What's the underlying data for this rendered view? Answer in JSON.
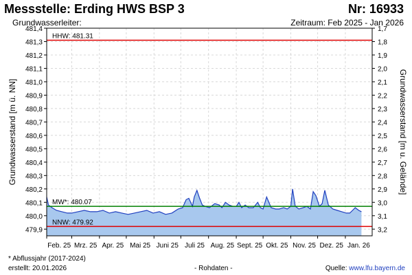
{
  "header": {
    "title": "Messstelle: Erding HWS BSP 3",
    "number": "Nr: 16933",
    "aquifer_label": "Grundwasserleiter:",
    "period": "Zeitraum: Feb 2025 - Jan 2026"
  },
  "footer": {
    "footnote": "* Abflussjahr (2017-2024)",
    "created": "erstellt:  20.01.2026",
    "raw_data": "- Rohdaten -",
    "source_label": "Quelle: ",
    "source_url": "www.lfu.bayern.de"
  },
  "colors": {
    "fill": "#a8c8ee",
    "line": "#1f3fbf",
    "hhw": "#e00000",
    "nnw": "#e00000",
    "mw": "#008000",
    "grid": "#d8d8d8"
  },
  "chart_data": {
    "type": "area",
    "ylabel": "Grundwasserstand [m ü. NN]",
    "ylabel_right": "Grundwasserstand [m u. Gelände]",
    "ylim": [
      479.85,
      481.4
    ],
    "y_ticks": [
      "479,9",
      "480,0",
      "480,1",
      "480,2",
      "480,3",
      "480,4",
      "480,5",
      "480,6",
      "480,7",
      "480,8",
      "480,9",
      "481,0",
      "481,1",
      "481,2",
      "481,3",
      "481,4"
    ],
    "y_right_ticks": [
      "1,7",
      "1,8",
      "1,9",
      "2,0",
      "2,1",
      "2,2",
      "2,3",
      "2,4",
      "2,5",
      "2,6",
      "2,7",
      "2,8",
      "2,9",
      "3,0",
      "3,1",
      "3,2"
    ],
    "x_ticks": [
      "Feb. 25",
      "Mrz. 25",
      "Apr. 25",
      "Mai 25",
      "Juni 25",
      "Juli 25",
      "Aug. 25",
      "Sept. 25",
      "Okt. 25",
      "Nov. 25",
      "Dez. 25",
      "Jan. 26"
    ],
    "grid": true,
    "reference_lines": [
      {
        "label": "HHW: 481.31",
        "value": 481.31
      },
      {
        "label": "MW*: 480.07",
        "value": 480.07
      },
      {
        "label": "NNW: 479.92",
        "value": 479.92
      }
    ],
    "series": [
      {
        "x": [
          "2025-02-01",
          "2025-02-03",
          "2025-02-07",
          "2025-02-12",
          "2025-02-18",
          "2025-02-24",
          "2025-03-01",
          "2025-03-08",
          "2025-03-15",
          "2025-03-22",
          "2025-03-29",
          "2025-04-05",
          "2025-04-12",
          "2025-04-19",
          "2025-04-26",
          "2025-05-03",
          "2025-05-10",
          "2025-05-17",
          "2025-05-24",
          "2025-05-31",
          "2025-06-07",
          "2025-06-14",
          "2025-06-21",
          "2025-06-28",
          "2025-07-03",
          "2025-07-07",
          "2025-07-10",
          "2025-07-14",
          "2025-07-16",
          "2025-07-19",
          "2025-07-22",
          "2025-07-25",
          "2025-07-28",
          "2025-08-02",
          "2025-08-08",
          "2025-08-13",
          "2025-08-16",
          "2025-08-20",
          "2025-08-24",
          "2025-08-28",
          "2025-09-01",
          "2025-09-04",
          "2025-09-07",
          "2025-09-11",
          "2025-09-15",
          "2025-09-20",
          "2025-09-25",
          "2025-09-28",
          "2025-10-01",
          "2025-10-05",
          "2025-10-10",
          "2025-10-15",
          "2025-10-19",
          "2025-10-24",
          "2025-10-28",
          "2025-11-01",
          "2025-11-03",
          "2025-11-06",
          "2025-11-10",
          "2025-11-15",
          "2025-11-19",
          "2025-11-23",
          "2025-11-26",
          "2025-11-29",
          "2025-12-03",
          "2025-12-06",
          "2025-12-09",
          "2025-12-13",
          "2025-12-18",
          "2025-12-23",
          "2025-12-28",
          "2026-01-02",
          "2026-01-06",
          "2026-01-09",
          "2026-01-12",
          "2026-01-16",
          "2026-01-19"
        ],
        "values": [
          480.14,
          480.08,
          480.06,
          480.04,
          480.03,
          480.02,
          480.02,
          480.03,
          480.04,
          480.03,
          480.03,
          480.04,
          480.02,
          480.03,
          480.02,
          480.01,
          480.02,
          480.03,
          480.04,
          480.02,
          480.03,
          480.01,
          480.02,
          480.05,
          480.06,
          480.12,
          480.13,
          480.07,
          480.14,
          480.19,
          480.13,
          480.08,
          480.07,
          480.06,
          480.09,
          480.08,
          480.06,
          480.1,
          480.08,
          480.07,
          480.07,
          480.1,
          480.06,
          480.08,
          480.06,
          480.06,
          480.1,
          480.06,
          480.05,
          480.14,
          480.06,
          480.05,
          480.05,
          480.06,
          480.05,
          480.07,
          480.2,
          480.07,
          480.05,
          480.06,
          480.07,
          480.05,
          480.18,
          480.15,
          480.07,
          480.09,
          480.19,
          480.08,
          480.05,
          480.04,
          480.03,
          480.02,
          480.02,
          480.04,
          480.06,
          480.04,
          480.03
        ]
      }
    ]
  }
}
